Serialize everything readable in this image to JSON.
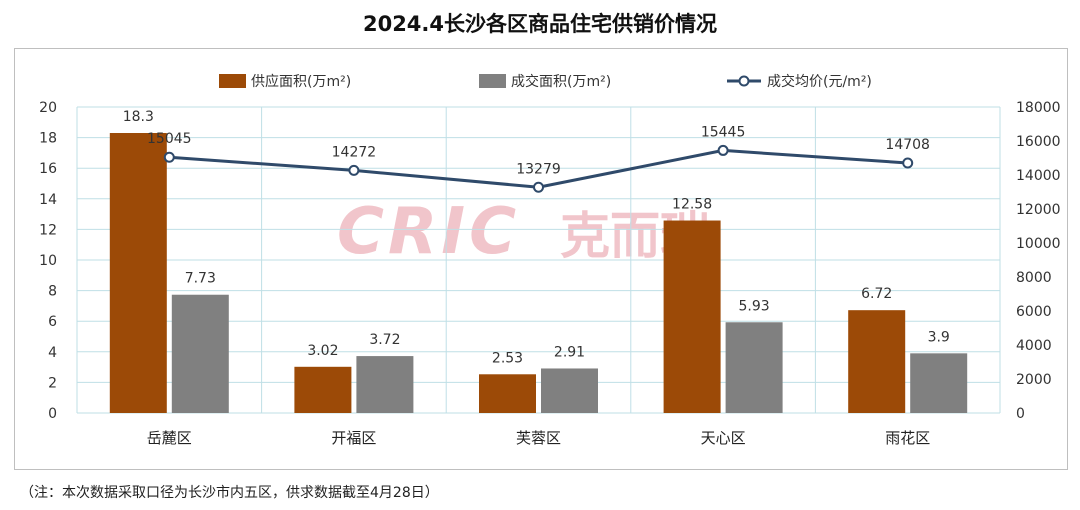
{
  "title": "2024.4长沙各区商品住宅供销价情况",
  "note": "（注：本次数据采取口径为长沙市内五区，供求数据截至4月28日）",
  "watermark": {
    "latin": "CRIC",
    "cjk": "克而瑞"
  },
  "colors": {
    "supply": "#9c4a07",
    "deal": "#808080",
    "price": "#2f4a6a",
    "grid": "#bfdfe6",
    "watermark": "#f1c5cb"
  },
  "chart_data": {
    "type": "bar",
    "categories": [
      "岳麓区",
      "开福区",
      "芙蓉区",
      "天心区",
      "雨花区"
    ],
    "series": [
      {
        "name": "供应面积(万m²)",
        "type": "bar",
        "axis": "left",
        "values": [
          18.3,
          3.02,
          2.53,
          12.58,
          6.72
        ],
        "labels": [
          "18.3",
          "3.02",
          "2.53",
          "12.58",
          "6.72"
        ]
      },
      {
        "name": "成交面积(万m²)",
        "type": "bar",
        "axis": "left",
        "values": [
          7.73,
          3.72,
          2.91,
          5.93,
          3.9
        ],
        "labels": [
          "7.73",
          "3.72",
          "2.91",
          "5.93",
          "3.9"
        ]
      },
      {
        "name": "成交均价(元/m²)",
        "type": "line",
        "axis": "right",
        "values": [
          15045,
          14272,
          13279,
          15445,
          14708
        ],
        "labels": [
          "15045",
          "14272",
          "13279",
          "15445",
          "14708"
        ]
      }
    ],
    "y_left": {
      "ticks": [
        "0",
        "2",
        "4",
        "6",
        "8",
        "10",
        "12",
        "14",
        "16",
        "18",
        "20"
      ],
      "ylim": [
        0,
        20
      ]
    },
    "y_right": {
      "ticks": [
        "0",
        "2000",
        "4000",
        "6000",
        "8000",
        "10000",
        "12000",
        "14000",
        "16000",
        "18000"
      ],
      "ylim": [
        0,
        18000
      ]
    },
    "legend_position": "top",
    "grid": true
  }
}
